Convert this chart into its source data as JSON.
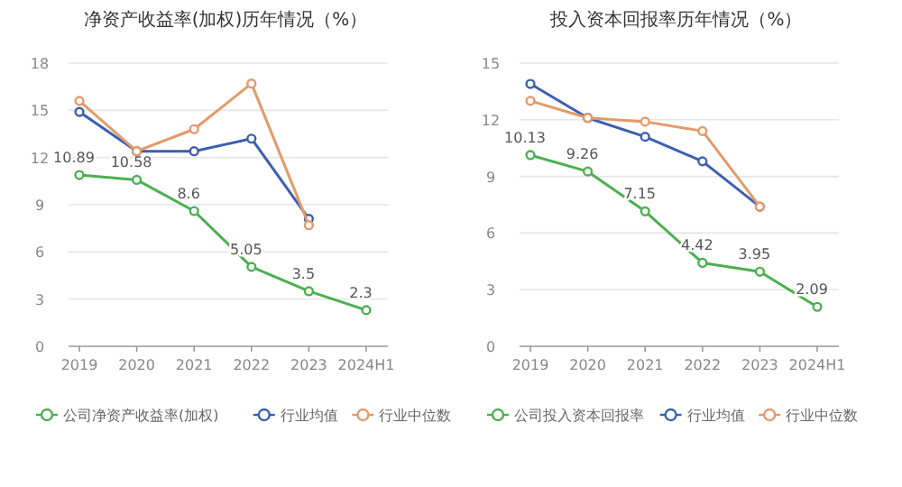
{
  "chart_data": [
    {
      "type": "line",
      "title": "净资产收益率(加权)历年情况（%）",
      "categories": [
        "2019",
        "2020",
        "2021",
        "2022",
        "2023",
        "2024H1"
      ],
      "ylim": [
        0,
        18
      ],
      "yticks": [
        0,
        3,
        6,
        9,
        12,
        15,
        18
      ],
      "grid": "y",
      "legend": "bottom",
      "marker": "circle",
      "series": [
        {
          "name": "公司净资产收益率(加权)",
          "color": "#4caf50",
          "values": [
            10.89,
            10.58,
            8.6,
            5.05,
            3.5,
            2.3
          ],
          "value_labels": [
            "10.89",
            "10.58",
            "8.6",
            "5.05",
            "3.5",
            "2.3"
          ]
        },
        {
          "name": "行业均值",
          "color": "#3b5fb0",
          "values": [
            14.9,
            12.4,
            12.4,
            13.2,
            8.1,
            null
          ]
        },
        {
          "name": "行业中位数",
          "color": "#e39a6a",
          "values": [
            15.6,
            12.4,
            13.8,
            16.7,
            7.7,
            null
          ]
        }
      ]
    },
    {
      "type": "line",
      "title": "投入资本回报率历年情况（%）",
      "categories": [
        "2019",
        "2020",
        "2021",
        "2022",
        "2023",
        "2024H1"
      ],
      "ylim": [
        0,
        15
      ],
      "yticks": [
        0,
        3,
        6,
        9,
        12,
        15
      ],
      "grid": "y",
      "legend": "bottom",
      "marker": "circle",
      "series": [
        {
          "name": "公司投入资本回报率",
          "color": "#4caf50",
          "values": [
            10.13,
            9.26,
            7.15,
            4.42,
            3.95,
            2.09
          ],
          "value_labels": [
            "10.13",
            "9.26",
            "7.15",
            "4.42",
            "3.95",
            "2.09"
          ]
        },
        {
          "name": "行业均值",
          "color": "#3b5fb0",
          "values": [
            13.9,
            12.1,
            11.1,
            9.8,
            7.4,
            null
          ]
        },
        {
          "name": "行业中位数",
          "color": "#e39a6a",
          "values": [
            13.0,
            12.1,
            11.9,
            11.4,
            7.4,
            null
          ]
        }
      ]
    }
  ]
}
